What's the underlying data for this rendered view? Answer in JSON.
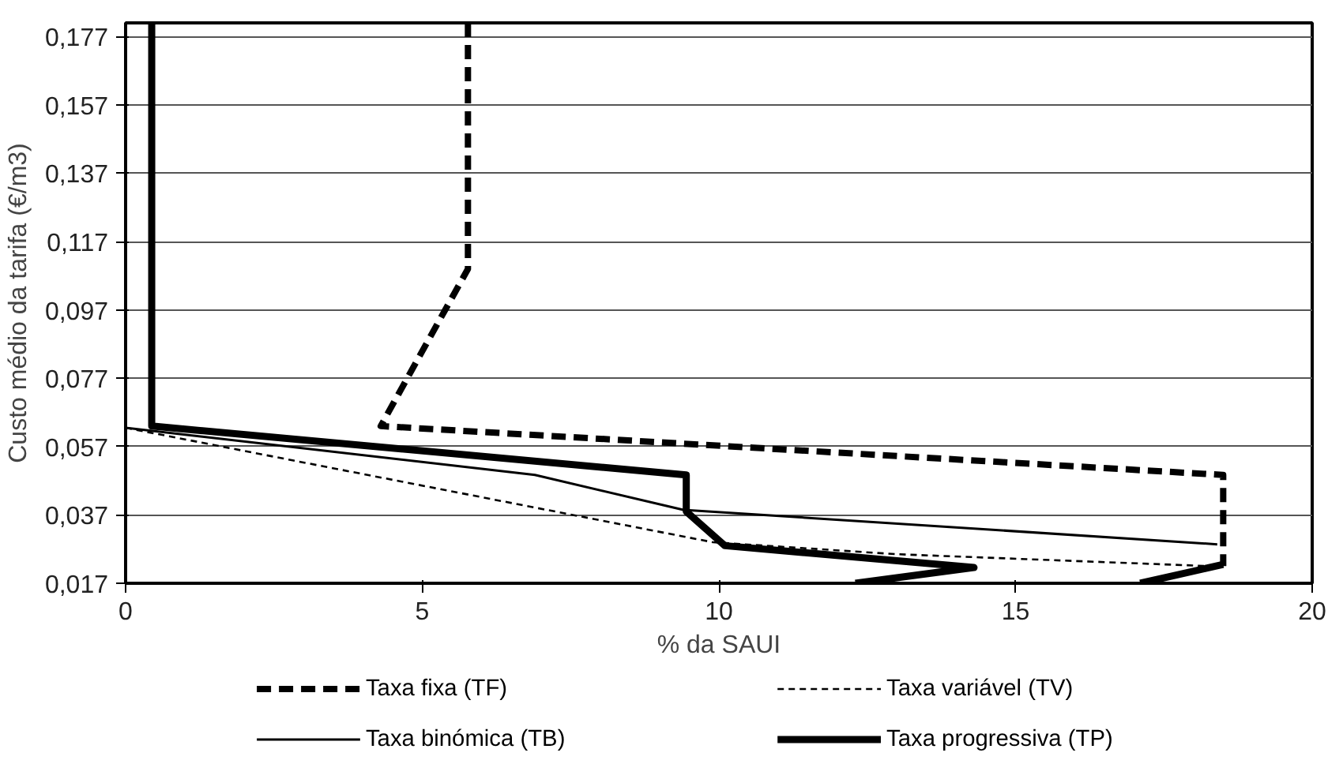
{
  "chart_data": {
    "type": "line",
    "xlabel": "% da SAUI",
    "ylabel": "Custo médio da tarifa (€/m3)",
    "xlim": [
      0,
      20
    ],
    "ylim": [
      0.017,
      0.181
    ],
    "xticks": [
      0,
      5,
      10,
      15,
      20
    ],
    "yticks": [
      {
        "value": 0.017,
        "label": "0,017"
      },
      {
        "value": 0.037,
        "label": "0,037"
      },
      {
        "value": 0.057,
        "label": "0,057"
      },
      {
        "value": 0.077,
        "label": "0,077"
      },
      {
        "value": 0.097,
        "label": "0,097"
      },
      {
        "value": 0.117,
        "label": "0,117"
      },
      {
        "value": 0.137,
        "label": "0,137"
      },
      {
        "value": 0.157,
        "label": "0,157"
      },
      {
        "value": 0.177,
        "label": "0,177"
      }
    ],
    "grid": "y",
    "legend": "bottom",
    "marker": "none",
    "series": [
      {
        "name": "Taxa fixa (TF)",
        "color": "#000000",
        "line_style": "dashed",
        "x": [
          5.77,
          5.77,
          4.3,
          18.5,
          18.5
        ],
        "values": [
          0.181,
          0.109,
          0.063,
          0.0487,
          0.022
        ]
      },
      {
        "name": "Taxa variável (TV)",
        "color": "#000000",
        "line_style": "dashed",
        "x": [
          0,
          9.9,
          13,
          18.3
        ],
        "values": [
          0.0625,
          0.029,
          0.0255,
          0.022
        ]
      },
      {
        "name": "Taxa binómica (TB)",
        "color": "#000000",
        "line_style": "solid",
        "x": [
          0,
          6.9,
          9.4,
          18.4
        ],
        "values": [
          0.0625,
          0.0487,
          0.0385,
          0.0284
        ]
      },
      {
        "name": "Taxa progressiva (TP)",
        "color": "#000000",
        "line_style": "solid",
        "x": [
          0.44,
          0.44,
          9.45,
          9.45,
          10.1,
          14.3,
          12.3,
          null,
          17.1,
          18.5
        ],
        "values": [
          0.181,
          0.063,
          0.0487,
          0.038,
          0.028,
          0.0216,
          0.017,
          null,
          0.017,
          0.0225
        ]
      }
    ]
  }
}
